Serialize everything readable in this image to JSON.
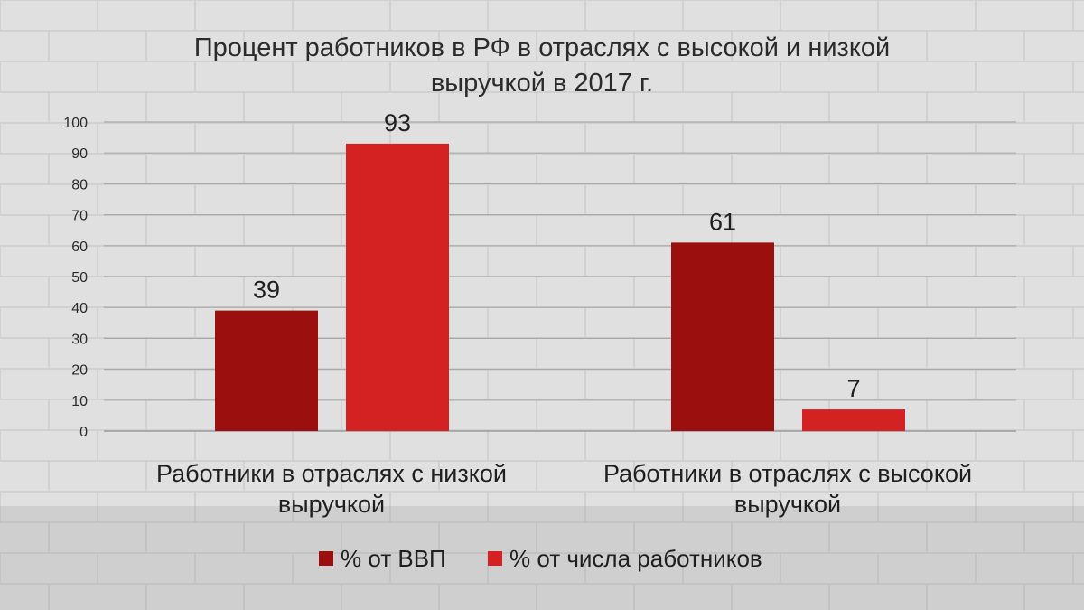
{
  "chart_data": {
    "type": "bar",
    "title_lines": [
      "Процент работников в РФ в отраслях с высокой и низкой",
      "выручкой в 2017 г."
    ],
    "categories": [
      "Работники в отраслях с низкой выручкой",
      "Работники в отраслях с высокой выручкой"
    ],
    "category_label_lines": [
      [
        "Работники в отраслях с низкой",
        "выручкой"
      ],
      [
        "Работники в отраслях с высокой",
        "выручкой"
      ]
    ],
    "series": [
      {
        "name": "% от ВВП",
        "values": [
          39,
          61
        ],
        "color": "#9b0f0f"
      },
      {
        "name": "% от числа работников",
        "values": [
          93,
          7
        ],
        "color": "#d42222"
      }
    ],
    "ylim": [
      0,
      100
    ],
    "yticks": [
      0,
      10,
      20,
      30,
      40,
      50,
      60,
      70,
      80,
      90,
      100
    ],
    "grid": true,
    "legend_position": "bottom"
  }
}
